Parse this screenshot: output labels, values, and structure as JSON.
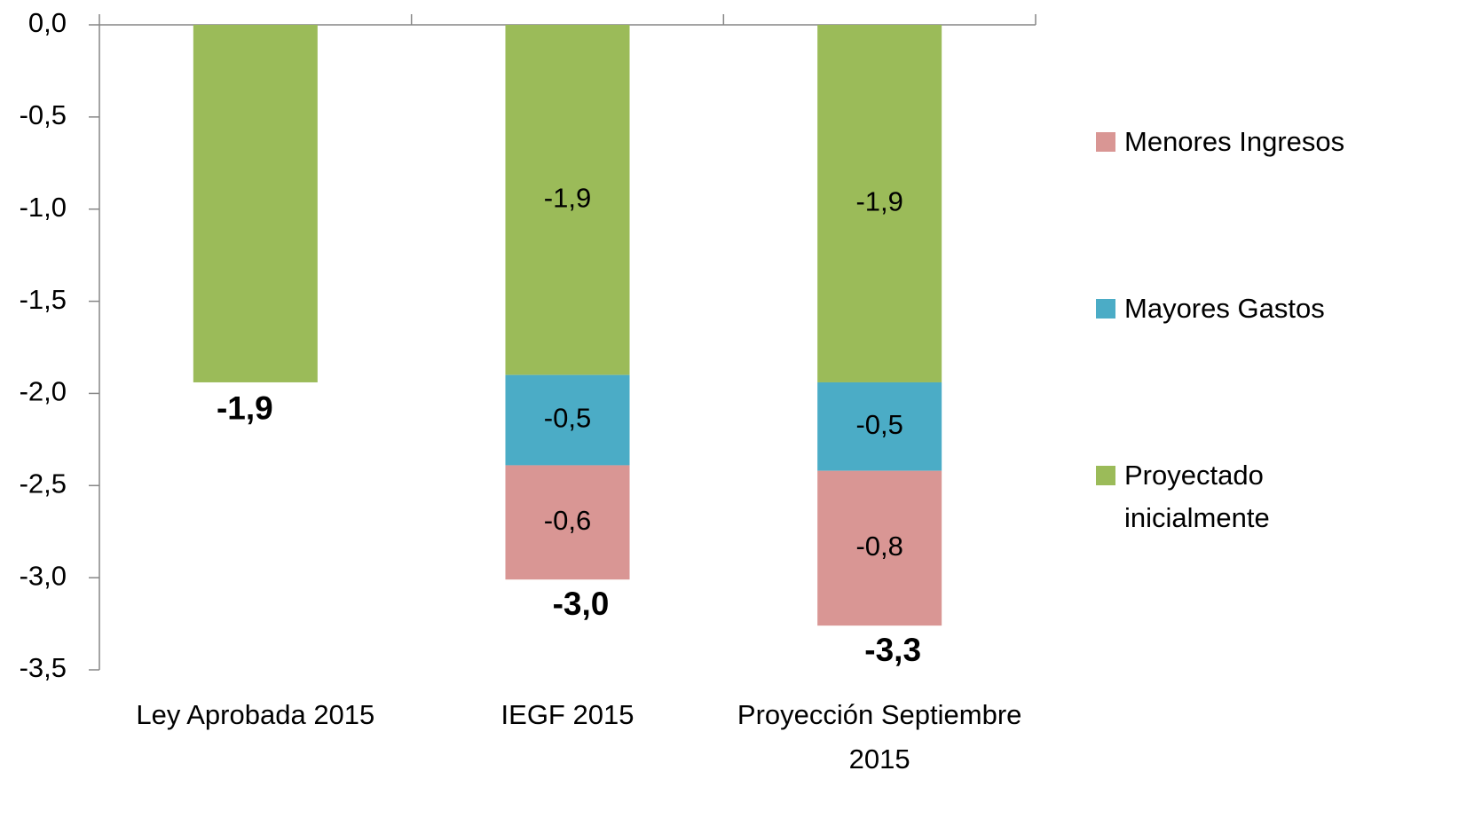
{
  "chart_data": {
    "type": "stacked_bar",
    "categories": [
      "Ley Aprobada 2015",
      "IEGF 2015",
      "Proyección Septiembre 2015"
    ],
    "series": [
      {
        "name": "Menores Ingresos",
        "color": "#d99694",
        "values": [
          null,
          -0.62,
          -0.84
        ],
        "value_labels": [
          null,
          "-0,6",
          "-0,8"
        ]
      },
      {
        "name": "Mayores Gastos",
        "color": "#4bacc6",
        "values": [
          null,
          -0.49,
          -0.48
        ],
        "value_labels": [
          null,
          "-0,5",
          "-0,5"
        ]
      },
      {
        "name": "Proyectado inicialmente",
        "color": "#9bbb59",
        "values": [
          -1.94,
          -1.9,
          -1.94
        ],
        "value_labels": [
          null,
          "-1,9",
          "-1,9"
        ]
      }
    ],
    "totals": [
      -1.94,
      -3.0,
      -3.25
    ],
    "total_labels": [
      "-1,9",
      "-3,0",
      "-3,3"
    ],
    "ylim": [
      -3.5,
      0
    ],
    "yticks": [
      {
        "value": 0,
        "label": "0,0"
      },
      {
        "value": -0.5,
        "label": "-0,5"
      },
      {
        "value": -1,
        "label": "-1,0"
      },
      {
        "value": -1.5,
        "label": "-1,5"
      },
      {
        "value": -2,
        "label": "-2,0"
      },
      {
        "value": -2.5,
        "label": "-2,5"
      },
      {
        "value": -3,
        "label": "-3,0"
      },
      {
        "value": -3.5,
        "label": "-3,5"
      }
    ],
    "grid": false,
    "legend": "right"
  }
}
